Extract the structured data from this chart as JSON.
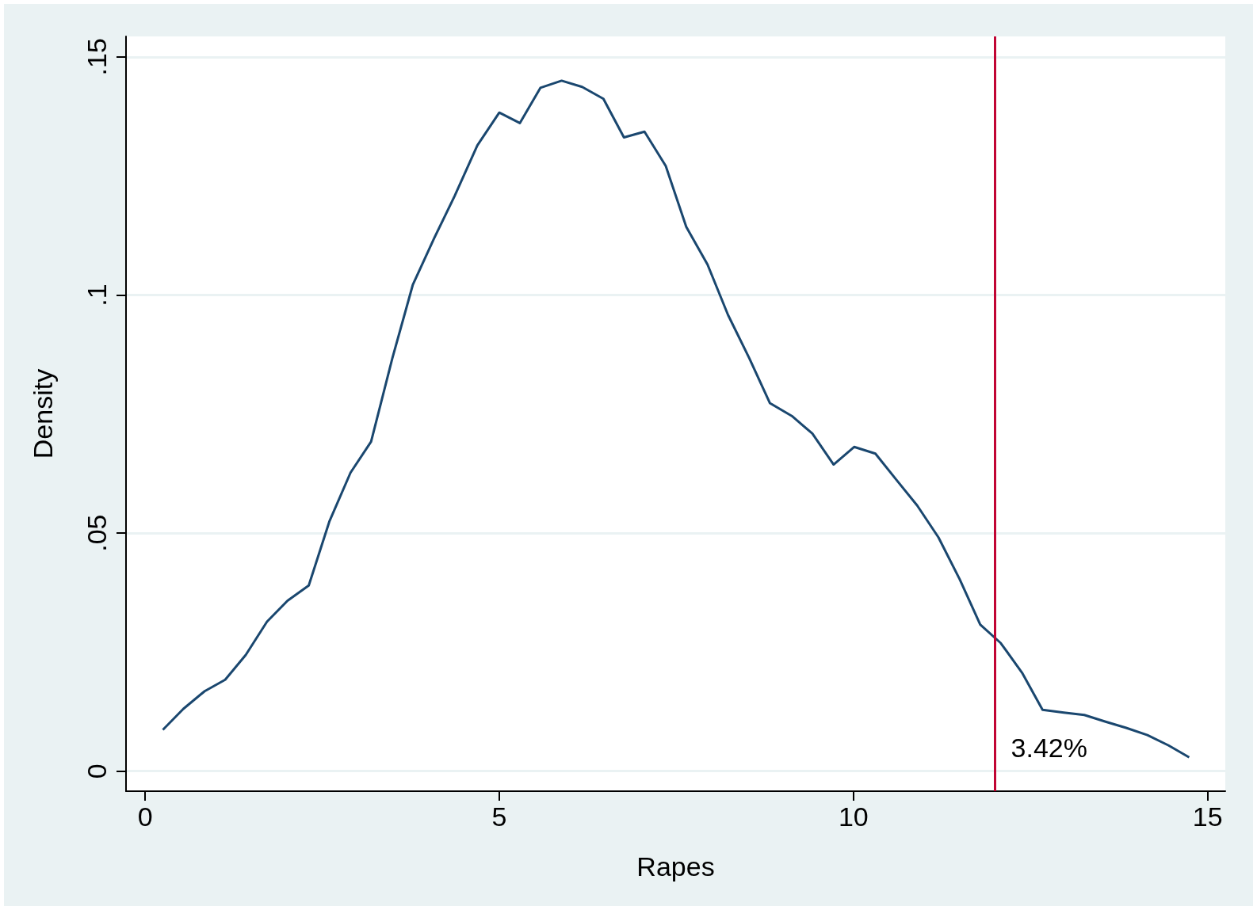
{
  "chart_data": {
    "type": "line",
    "xlabel": "Rapes",
    "ylabel": "Density",
    "x": [
      0.25,
      0.54,
      0.84,
      1.13,
      1.42,
      1.72,
      2.01,
      2.31,
      2.6,
      2.9,
      3.19,
      3.49,
      3.78,
      4.08,
      4.37,
      4.69,
      5.0,
      5.29,
      5.58,
      5.88,
      6.17,
      6.47,
      6.76,
      7.05,
      7.35,
      7.64,
      7.94,
      8.23,
      8.53,
      8.82,
      9.13,
      9.42,
      9.72,
      10.01,
      10.31,
      10.6,
      10.9,
      11.2,
      11.5,
      11.79,
      12.08,
      12.38,
      12.67,
      12.97,
      13.26,
      13.56,
      13.85,
      14.15,
      14.45,
      14.74
    ],
    "series": [
      {
        "color": "#1a476f",
        "values": [
          0.0087,
          0.0131,
          0.0168,
          0.0192,
          0.0244,
          0.0314,
          0.0358,
          0.039,
          0.0524,
          0.0627,
          0.0692,
          0.0867,
          0.1022,
          0.1119,
          0.1208,
          0.1314,
          0.1383,
          0.1361,
          0.1435,
          0.145,
          0.1437,
          0.1412,
          0.1331,
          0.1343,
          0.1271,
          0.1143,
          0.1064,
          0.0958,
          0.0867,
          0.0773,
          0.0746,
          0.0709,
          0.0644,
          0.0681,
          0.0667,
          0.0613,
          0.0558,
          0.0491,
          0.0403,
          0.0308,
          0.0269,
          0.0207,
          0.0129,
          0.0123,
          0.0118,
          0.0104,
          0.0091,
          0.0076,
          0.0054,
          0.0029
        ]
      }
    ],
    "xlim": [
      -0.27,
      15.25
    ],
    "ylim": [
      -0.0042,
      0.1543
    ],
    "xticks": [
      0,
      5,
      10,
      15
    ],
    "yticks": [
      {
        "value": 0,
        "label": "0"
      },
      {
        "value": 0.05,
        "label": ".05"
      },
      {
        "value": 0.1,
        "label": ".1"
      },
      {
        "value": 0.15,
        "label": ".15"
      }
    ],
    "grid": "y",
    "marker": "none",
    "line_style": "solid",
    "annotations": [
      "3.42%"
    ],
    "ref_lines": [
      {
        "axis": "x",
        "value": 12,
        "color": "#c10534"
      }
    ]
  }
}
